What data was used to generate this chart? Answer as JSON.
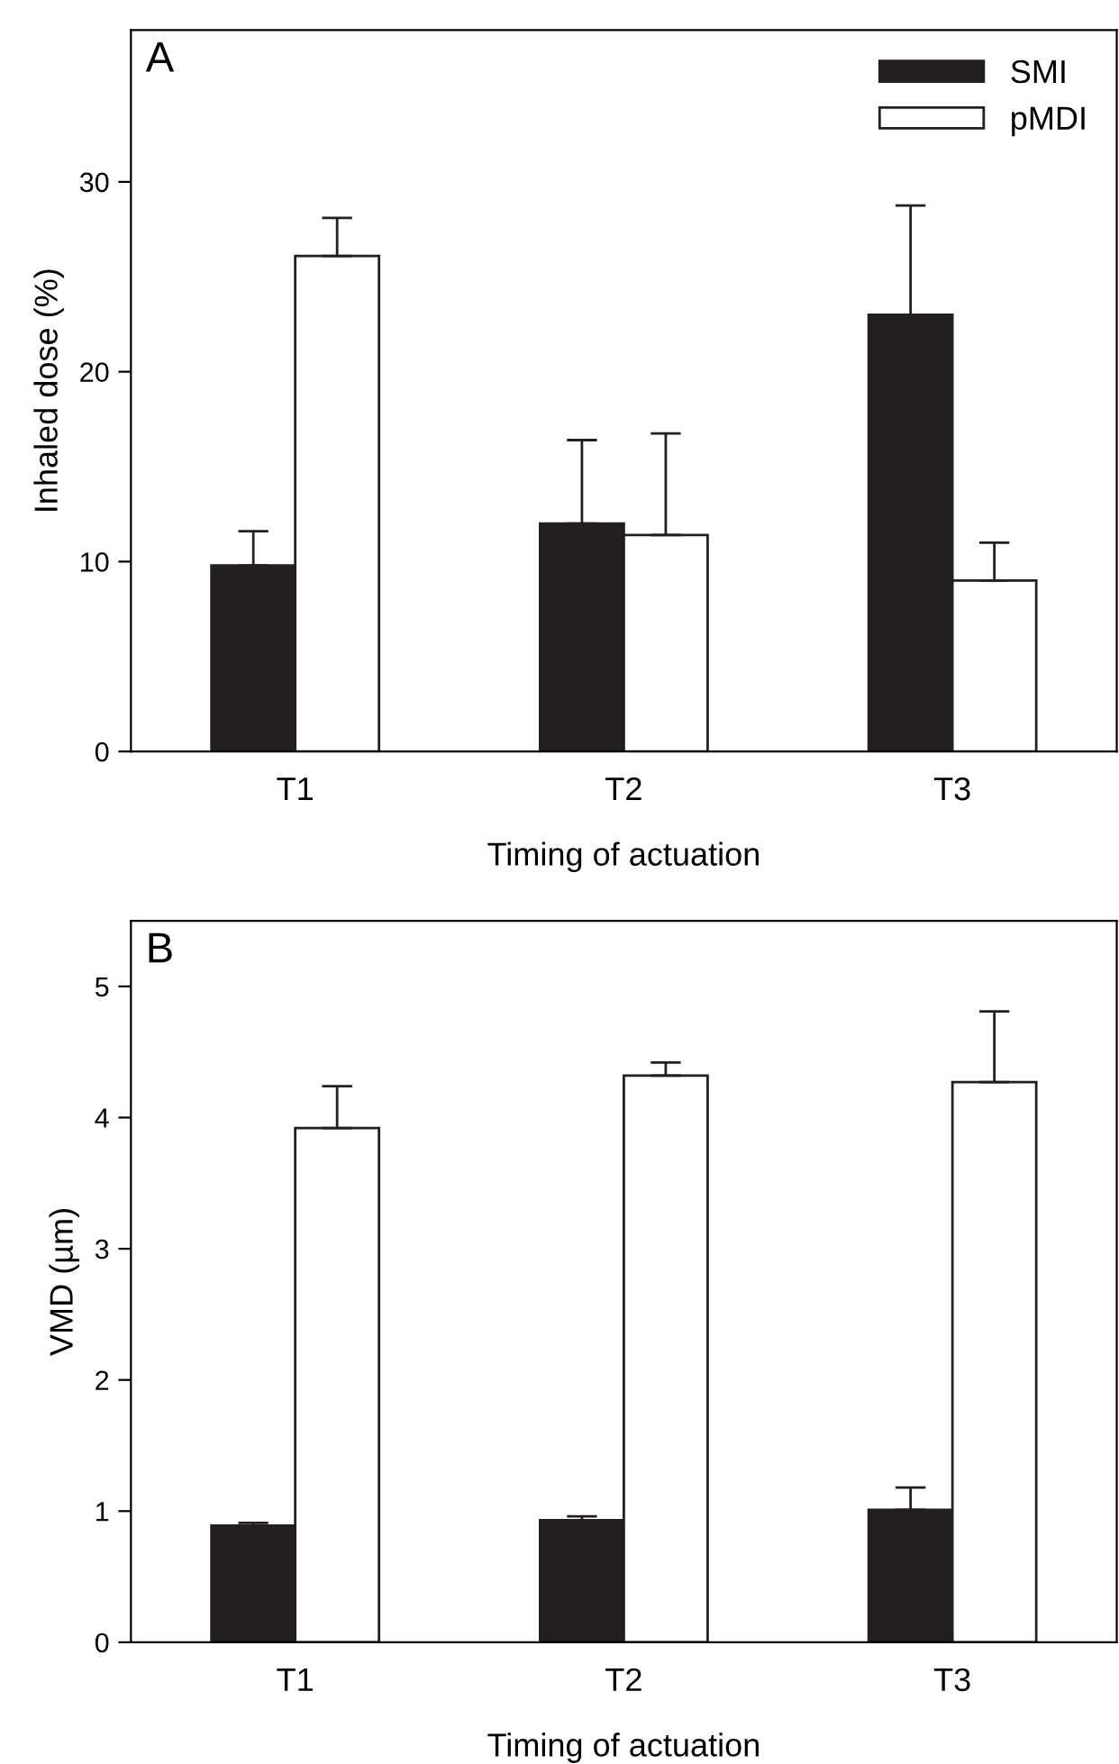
{
  "chart_data": [
    {
      "type": "bar",
      "annotations": [
        "A"
      ],
      "xlabel": "Timing of actuation",
      "ylabel": "Inhaled dose (%)",
      "categories": [
        "T1",
        "T2",
        "T3"
      ],
      "ylim": [
        0,
        38
      ],
      "yticks": [
        0,
        10,
        20,
        30
      ],
      "grid": false,
      "legend": "top right",
      "series": [
        {
          "name": "SMI",
          "color": "#231f20",
          "values": [
            9.8,
            12.0,
            23.0
          ],
          "errors": [
            [
              9.8,
              11.6
            ],
            [
              12.0,
              16.4
            ],
            [
              23.0,
              28.75
            ]
          ]
        },
        {
          "name": "pMDI",
          "color": "#ffffff",
          "values": [
            26.1,
            11.4,
            9.0
          ],
          "errors": [
            [
              26.1,
              28.1
            ],
            [
              11.4,
              16.75
            ],
            [
              9.0,
              11.0
            ]
          ]
        }
      ]
    },
    {
      "type": "bar",
      "annotations": [
        "B"
      ],
      "xlabel": "Timing of actuation",
      "ylabel": "VMD (µm)",
      "categories": [
        "T1",
        "T2",
        "T3"
      ],
      "ylim": [
        0,
        5.5
      ],
      "yticks": [
        0,
        1,
        2,
        3,
        4,
        5
      ],
      "grid": false,
      "legend": false,
      "series": [
        {
          "color": "#231f20",
          "values": [
            0.89,
            0.93,
            1.01
          ],
          "errors": [
            [
              0.89,
              0.91
            ],
            [
              0.93,
              0.96
            ],
            [
              1.01,
              1.18
            ]
          ]
        },
        {
          "color": "#ffffff",
          "values": [
            3.92,
            4.32,
            4.27
          ],
          "errors": [
            [
              3.92,
              4.24
            ],
            [
              4.32,
              4.42
            ],
            [
              4.27,
              4.81
            ]
          ]
        }
      ]
    }
  ]
}
